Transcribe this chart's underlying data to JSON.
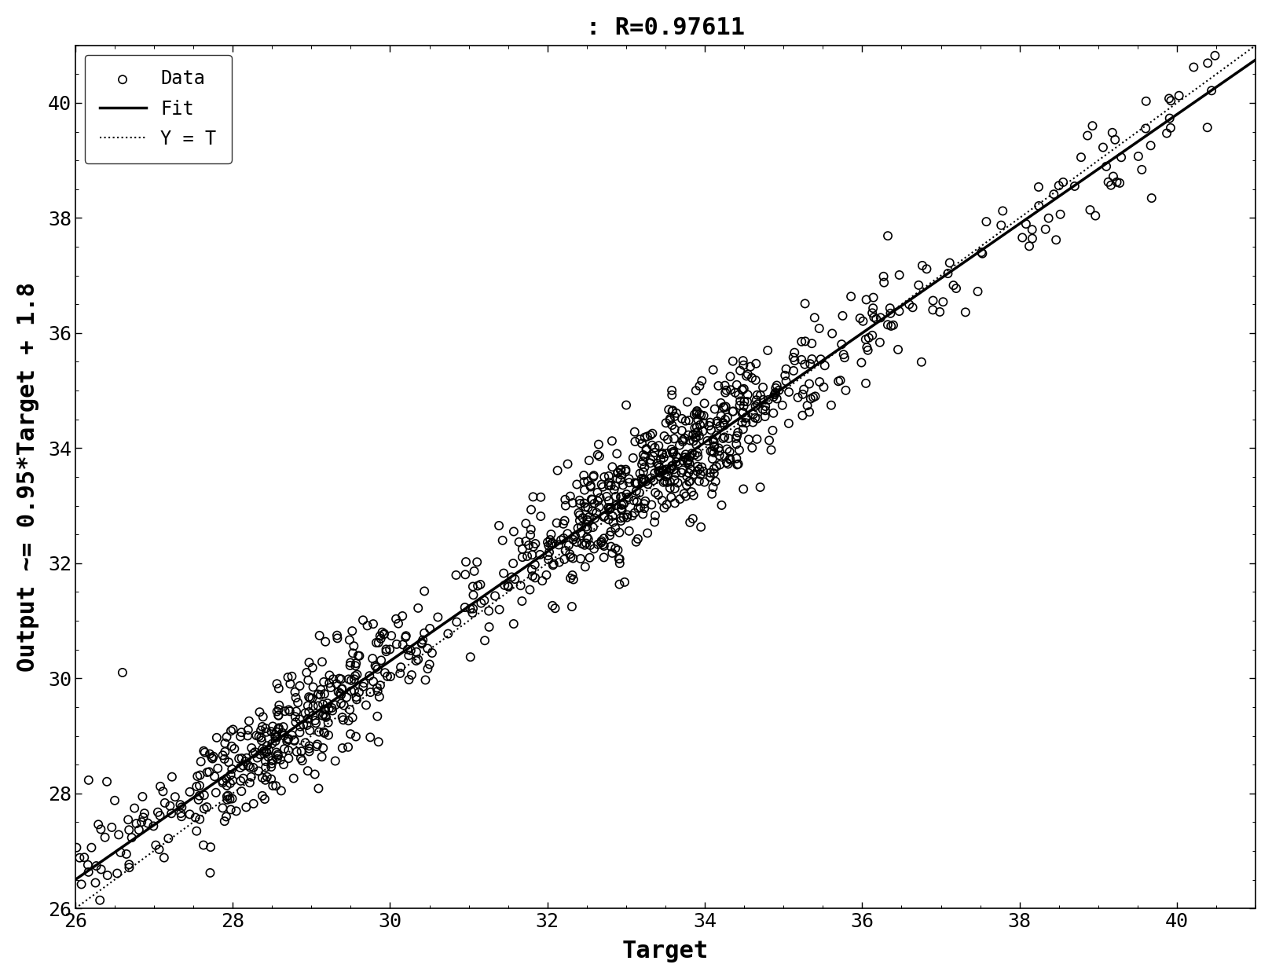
{
  "title": ": R=0.97611",
  "xlabel": "Target",
  "ylabel": "Output ~= 0.95*Target + 1.8",
  "xlim": [
    26,
    41
  ],
  "ylim": [
    26,
    41
  ],
  "xticks": [
    26,
    28,
    30,
    32,
    34,
    36,
    38,
    40
  ],
  "yticks": [
    26,
    28,
    30,
    32,
    34,
    36,
    38,
    40
  ],
  "fit_slope": 0.95,
  "fit_intercept": 1.8,
  "R": 0.97611,
  "scatter_color": "black",
  "fit_color": "black",
  "yt_color": "black",
  "background_color": "white",
  "title_fontsize": 22,
  "label_fontsize": 22,
  "tick_fontsize": 18,
  "legend_fontsize": 17,
  "seed": 42,
  "n_points_dense": 600,
  "n_points_sparse": 200
}
